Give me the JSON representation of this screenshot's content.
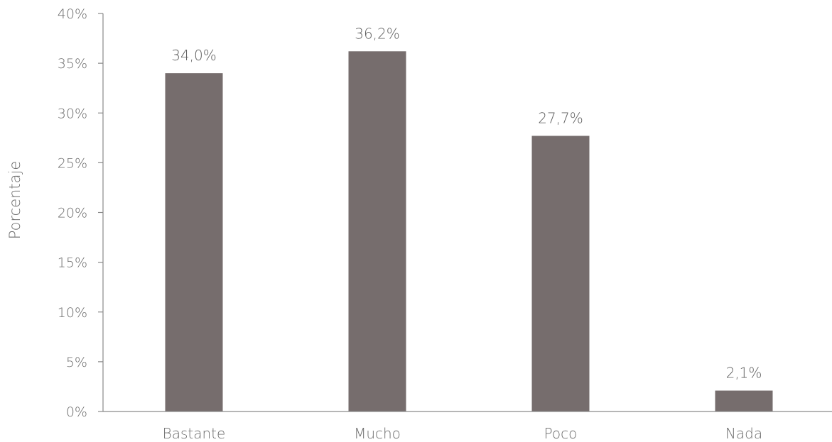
{
  "chart_data": {
    "type": "bar",
    "ylabel": "Porcentaje",
    "xlabel": "",
    "ylim": [
      0,
      40
    ],
    "ytick_step": 5,
    "y_tick_labels": [
      "0%",
      "5%",
      "10%",
      "15%",
      "20%",
      "25%",
      "30%",
      "35%",
      "40%"
    ],
    "categories": [
      "Bastante",
      "Mucho",
      "Poco",
      "Nada"
    ],
    "values": [
      34.0,
      36.2,
      27.7,
      2.1
    ],
    "data_labels": [
      "34,0%",
      "36,2%",
      "27,7%",
      "2,1%"
    ],
    "bar_color": "#766d6d",
    "grid": false,
    "legend": "none"
  }
}
